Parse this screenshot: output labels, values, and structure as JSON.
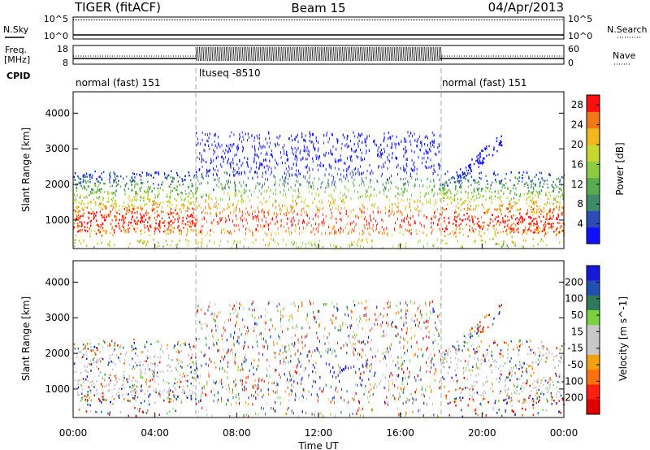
{
  "header": {
    "radar": "TIGER (fitACF)",
    "beam": "Beam 15",
    "date": "04/Apr/2013"
  },
  "strip_labels": {
    "nsky": "N.Sky",
    "freq_line1": "Freq.",
    "freq_line2": "[MHz]",
    "cpid": "CPID",
    "nsearch": "N.Search",
    "nave": "Nave"
  },
  "noise_panel": {
    "left_ticks": [
      "10^5",
      "10^0"
    ],
    "right_ticks": [
      "10^5",
      "10^0"
    ]
  },
  "freq_panel": {
    "left_ticks": [
      "18",
      "8"
    ],
    "right_ticks": [
      "60",
      "0"
    ]
  },
  "cpid_segments": [
    {
      "label": "normal (fast) 151",
      "start_hour": 0,
      "end_hour": 6
    },
    {
      "label": "ltuseq -8510",
      "start_hour": 6,
      "end_hour": 18
    },
    {
      "label": "normal (fast) 151",
      "start_hour": 18,
      "end_hour": 24
    }
  ],
  "colors": {
    "power_scale": [
      "#1010ff",
      "#2a4db8",
      "#3f8a6a",
      "#5aaa50",
      "#8ccd40",
      "#c8d630",
      "#f0b81c",
      "#f07818",
      "#ff1010"
    ],
    "velocity_scale": [
      "#1818d8",
      "#2050b0",
      "#2e7a5a",
      "#7ad040",
      "#c8c8c8",
      "#c8c8c8",
      "#f0a010",
      "#ff7010",
      "#ff2010",
      "#e00000"
    ]
  },
  "chart_data": [
    {
      "type": "heatmap",
      "parameter": "Power",
      "ylabel": "Slant Range [km]",
      "xlabel": "",
      "x_range_hours": [
        0,
        24
      ],
      "ylim": [
        200,
        4600
      ],
      "xticks": [
        "00:00",
        "04:00",
        "08:00",
        "12:00",
        "16:00",
        "20:00",
        "00:00"
      ],
      "yticks": [
        "1000",
        "2000",
        "3000",
        "4000"
      ],
      "colorbar": {
        "label": "Power [dB]",
        "ticks": [
          "4",
          "8",
          "12",
          "16",
          "20",
          "24",
          "28"
        ],
        "range": [
          0,
          30
        ]
      }
    },
    {
      "type": "heatmap",
      "parameter": "Velocity",
      "ylabel": "Slant Range [km]",
      "xlabel": "Time UT",
      "x_range_hours": [
        0,
        24
      ],
      "ylim": [
        200,
        4600
      ],
      "xticks": [
        "00:00",
        "04:00",
        "08:00",
        "12:00",
        "16:00",
        "20:00",
        "00:00"
      ],
      "yticks": [
        "1000",
        "2000",
        "3000",
        "4000"
      ],
      "colorbar": {
        "label": "Velocity [m s^-1]",
        "ticks": [
          "200",
          "100",
          "50",
          "15",
          "-15",
          "-50",
          "-100",
          "-200"
        ]
      }
    }
  ]
}
